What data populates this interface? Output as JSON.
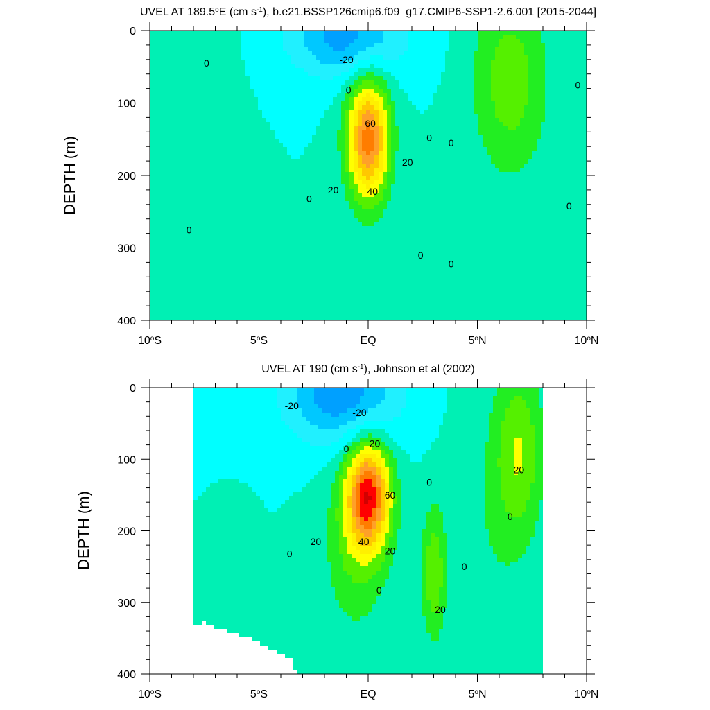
{
  "chart_data": [
    {
      "type": "contour",
      "title_pre": "UVEL AT 189.5",
      "title_sup1": "o",
      "title_mid": "E (cm s",
      "title_sup2": "-1",
      "title_post": "), b.e21.BSSP126cmip6.f09_g17.CMIP6-SSP1-2.6.001 [2015-2044]",
      "ylabel": "DEPTH (m)",
      "xlim": [
        -10,
        10
      ],
      "ylim": [
        400,
        0
      ],
      "x_ticks": [
        {
          "value": -10,
          "num": "10",
          "deg": "o",
          "hemi": "S"
        },
        {
          "value": -5,
          "num": "5",
          "deg": "o",
          "hemi": "S"
        },
        {
          "value": 0,
          "num": "EQ",
          "deg": "",
          "hemi": ""
        },
        {
          "value": 5,
          "num": "5",
          "deg": "o",
          "hemi": "N"
        },
        {
          "value": 10,
          "num": "10",
          "deg": "o",
          "hemi": "N"
        }
      ],
      "y_ticks": [
        {
          "value": 0,
          "label": "0"
        },
        {
          "value": 100,
          "label": "100"
        },
        {
          "value": 200,
          "label": "200"
        },
        {
          "value": 300,
          "label": "300"
        },
        {
          "value": 400,
          "label": "400"
        }
      ],
      "contour_interval": 10,
      "cores": [
        {
          "lat": 0.0,
          "depth": 150,
          "peak": 75,
          "wlat": 0.95,
          "wdep": 85
        },
        {
          "lat": 6.5,
          "depth": 70,
          "peak": 26,
          "wlat": 1.7,
          "wdep": 130
        },
        {
          "lat": -1.0,
          "depth": 10,
          "peak": -35,
          "wlat": 2.6,
          "wdep": 55
        },
        {
          "lat": -8.3,
          "depth": 50,
          "peak": 10,
          "wlat": 1.7,
          "wdep": 110
        },
        {
          "lat": -8.8,
          "depth": 380,
          "peak": 10,
          "wlat": 2.0,
          "wdep": 130
        }
      ],
      "contour_labels": [
        {
          "lat": -1.0,
          "depth": 40,
          "text": "-20"
        },
        {
          "lat": -7.4,
          "depth": 45,
          "text": "0"
        },
        {
          "lat": -0.9,
          "depth": 82,
          "text": "0"
        },
        {
          "lat": 0.1,
          "depth": 128,
          "text": "60"
        },
        {
          "lat": 1.8,
          "depth": 182,
          "text": "20"
        },
        {
          "lat": -1.6,
          "depth": 220,
          "text": "20"
        },
        {
          "lat": 0.2,
          "depth": 222,
          "text": "40"
        },
        {
          "lat": -2.7,
          "depth": 232,
          "text": "0"
        },
        {
          "lat": 2.8,
          "depth": 148,
          "text": "0"
        },
        {
          "lat": 3.8,
          "depth": 155,
          "text": "0"
        },
        {
          "lat": -8.2,
          "depth": 275,
          "text": "0"
        },
        {
          "lat": 2.4,
          "depth": 310,
          "text": "0"
        },
        {
          "lat": 3.8,
          "depth": 322,
          "text": "0"
        },
        {
          "lat": 9.6,
          "depth": 75,
          "text": "0"
        },
        {
          "lat": 9.2,
          "depth": 242,
          "text": "0"
        }
      ]
    },
    {
      "type": "contour",
      "title_pre": "UVEL AT 190 (cm s",
      "title_sup1": "",
      "title_mid": "",
      "title_sup2": "-1",
      "title_post": "), Johnson et al (2002)",
      "ylabel": "DEPTH (m)",
      "xlim": [
        -10,
        10
      ],
      "ylim": [
        400,
        0
      ],
      "x_ticks": [
        {
          "value": -10,
          "num": "10",
          "deg": "o",
          "hemi": "S"
        },
        {
          "value": -5,
          "num": "5",
          "deg": "o",
          "hemi": "S"
        },
        {
          "value": 0,
          "num": "EQ",
          "deg": "",
          "hemi": ""
        },
        {
          "value": 5,
          "num": "5",
          "deg": "o",
          "hemi": "N"
        },
        {
          "value": 10,
          "num": "10",
          "deg": "o",
          "hemi": "N"
        }
      ],
      "y_ticks": [
        {
          "value": 0,
          "label": "0"
        },
        {
          "value": 100,
          "label": "100"
        },
        {
          "value": 200,
          "label": "200"
        },
        {
          "value": 300,
          "label": "300"
        },
        {
          "value": 400,
          "label": "400"
        }
      ],
      "contour_interval": 10,
      "data_lat_range": [
        -8,
        8
      ],
      "missing_bottom": [
        {
          "lat": -8.0,
          "depth": 335
        },
        {
          "lat": -7.5,
          "depth": 325
        },
        {
          "lat": -7.0,
          "depth": 335
        },
        {
          "lat": -6.0,
          "depth": 345
        },
        {
          "lat": -5.0,
          "depth": 355
        },
        {
          "lat": -4.5,
          "depth": 365
        },
        {
          "lat": -3.5,
          "depth": 380
        },
        {
          "lat": -3.3,
          "depth": 400
        },
        {
          "lat": 8.0,
          "depth": 400
        }
      ],
      "cores": [
        {
          "lat": 0.0,
          "depth": 150,
          "peak": 82,
          "wlat": 1.0,
          "wdep": 75
        },
        {
          "lat": -0.6,
          "depth": 230,
          "peak": 18,
          "wlat": 1.5,
          "wdep": 120
        },
        {
          "lat": 3.0,
          "depth": 260,
          "peak": 28,
          "wlat": 0.55,
          "wdep": 90
        },
        {
          "lat": 6.9,
          "depth": 90,
          "peak": 28,
          "wlat": 1.1,
          "wdep": 120
        },
        {
          "lat": -1.2,
          "depth": 10,
          "peak": -38,
          "wlat": 2.6,
          "wdep": 70
        },
        {
          "lat": -5.9,
          "depth": 330,
          "peak": 10,
          "wlat": 0.8,
          "wdep": 90
        },
        {
          "lat": 5.5,
          "depth": 200,
          "peak": 8,
          "wlat": 1.8,
          "wdep": 200
        }
      ],
      "contour_labels": [
        {
          "lat": -3.5,
          "depth": 25,
          "text": "-20"
        },
        {
          "lat": -0.4,
          "depth": 35,
          "text": "-20"
        },
        {
          "lat": 0.3,
          "depth": 78,
          "text": "20"
        },
        {
          "lat": -1.0,
          "depth": 85,
          "text": "0"
        },
        {
          "lat": 1.0,
          "depth": 150,
          "text": "60"
        },
        {
          "lat": 2.8,
          "depth": 132,
          "text": "0"
        },
        {
          "lat": -2.4,
          "depth": 215,
          "text": "20"
        },
        {
          "lat": -0.2,
          "depth": 215,
          "text": "40"
        },
        {
          "lat": 1.0,
          "depth": 228,
          "text": "20"
        },
        {
          "lat": -3.6,
          "depth": 232,
          "text": "0"
        },
        {
          "lat": 4.4,
          "depth": 250,
          "text": "0"
        },
        {
          "lat": 6.5,
          "depth": 180,
          "text": "0"
        },
        {
          "lat": 6.9,
          "depth": 115,
          "text": "20"
        },
        {
          "lat": 0.5,
          "depth": 283,
          "text": "0"
        },
        {
          "lat": 3.3,
          "depth": 310,
          "text": "20"
        }
      ]
    }
  ],
  "colors": {
    "n40": "#00a0ff",
    "n30": "#00c8ff",
    "n20": "#20f0ff",
    "n10": "#00ffff",
    "z0": "#00f0b4",
    "p10": "#22ee22",
    "p20": "#55f000",
    "p30": "#ffff00",
    "p40": "#fff000",
    "p50": "#ffc800",
    "p60": "#ffa028",
    "p70": "#ff7d00",
    "p80": "#ff0000",
    "p90": "#d20000"
  }
}
